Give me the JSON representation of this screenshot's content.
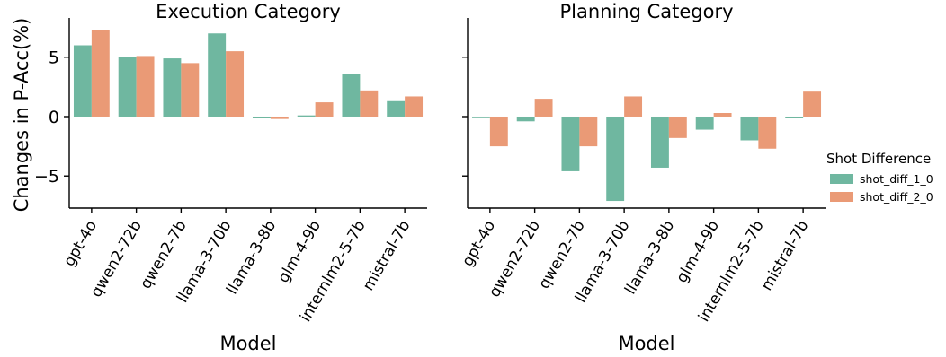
{
  "chart_data": {
    "type": "bar",
    "ylabel": "Changes in P-Acc(%)",
    "xlabel": "Model",
    "ylim": [
      -7.7,
      8.0
    ],
    "yticks": [
      -5,
      0,
      5
    ],
    "legend": {
      "title": "Shot Difference",
      "placement": "center-right"
    },
    "categories": [
      "gpt-4o",
      "qwen2-72b",
      "qwen2-7b",
      "llama-3-70b",
      "llama-3-8b",
      "glm-4-9b",
      "internlm2-5-7b",
      "mistral-7b"
    ],
    "series_colors": [
      "#6fb7a0",
      "#ea9a76"
    ],
    "series_names": [
      "shot_diff_1_0",
      "shot_diff_2_0"
    ],
    "panels": [
      {
        "title": "Execution Category",
        "series": [
          {
            "name": "shot_diff_1_0",
            "values": [
              6.0,
              5.0,
              4.9,
              7.0,
              -0.1,
              0.1,
              3.6,
              1.3
            ]
          },
          {
            "name": "shot_diff_2_0",
            "values": [
              7.3,
              5.1,
              4.5,
              5.5,
              -0.2,
              1.2,
              2.2,
              1.7
            ]
          }
        ]
      },
      {
        "title": "Planning Category",
        "series": [
          {
            "name": "shot_diff_1_0",
            "values": [
              0.0,
              -0.4,
              -4.6,
              -7.1,
              -4.3,
              -1.1,
              -2.0,
              -0.1
            ]
          },
          {
            "name": "shot_diff_2_0",
            "values": [
              -2.5,
              1.5,
              -2.5,
              1.7,
              -1.8,
              0.3,
              -2.7,
              2.1
            ]
          }
        ]
      }
    ]
  }
}
